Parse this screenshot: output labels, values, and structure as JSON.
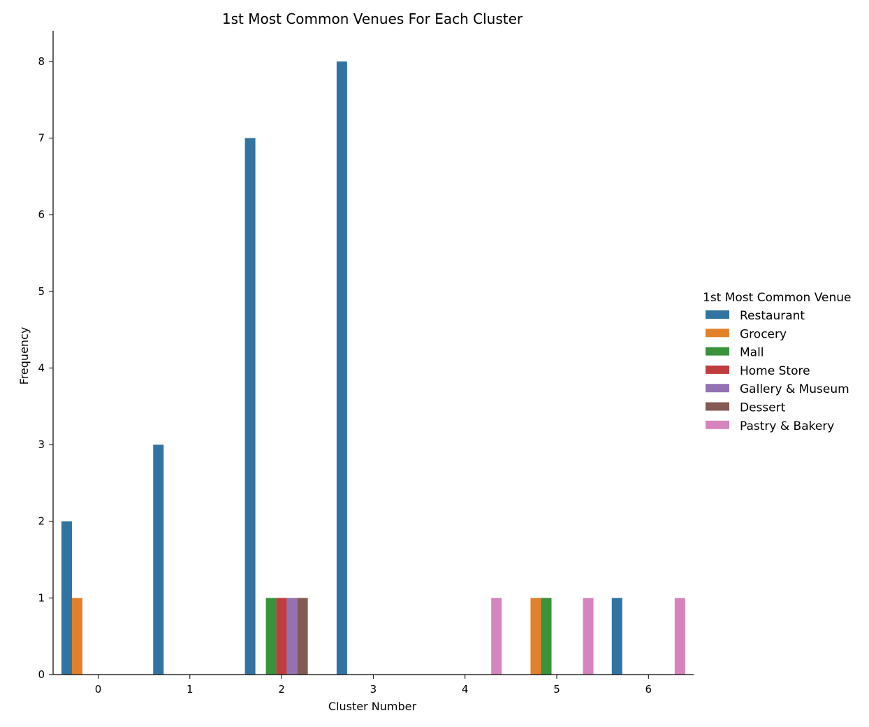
{
  "chart_data": {
    "type": "bar",
    "title": "1st Most Common Venues For Each Cluster",
    "xlabel": "Cluster Number",
    "ylabel": "Frequency",
    "categories": [
      "0",
      "1",
      "2",
      "3",
      "4",
      "5",
      "6"
    ],
    "ylim": [
      0,
      8.4
    ],
    "yticks": [
      0,
      1,
      2,
      3,
      4,
      5,
      6,
      7,
      8
    ],
    "grid": false,
    "legend": {
      "title": "1st Most Common Venue",
      "placement": "right"
    },
    "series": [
      {
        "name": "Restaurant",
        "color": "#3274a1",
        "values": [
          2,
          3,
          7,
          8,
          0,
          0,
          1
        ]
      },
      {
        "name": "Grocery",
        "color": "#e1812c",
        "values": [
          1,
          0,
          0,
          0,
          0,
          1,
          0
        ]
      },
      {
        "name": "Mall",
        "color": "#3a923a",
        "values": [
          0,
          0,
          1,
          0,
          0,
          1,
          0
        ]
      },
      {
        "name": "Home Store",
        "color": "#c03d3e",
        "values": [
          0,
          0,
          1,
          0,
          0,
          0,
          0
        ]
      },
      {
        "name": "Gallery & Museum",
        "color": "#9372b2",
        "values": [
          0,
          0,
          1,
          0,
          0,
          0,
          0
        ]
      },
      {
        "name": "Dessert",
        "color": "#845b53",
        "values": [
          0,
          0,
          1,
          0,
          0,
          0,
          0
        ]
      },
      {
        "name": "Pastry & Bakery",
        "color": "#d684bd",
        "values": [
          0,
          0,
          0,
          0,
          1,
          1,
          1
        ]
      }
    ]
  }
}
